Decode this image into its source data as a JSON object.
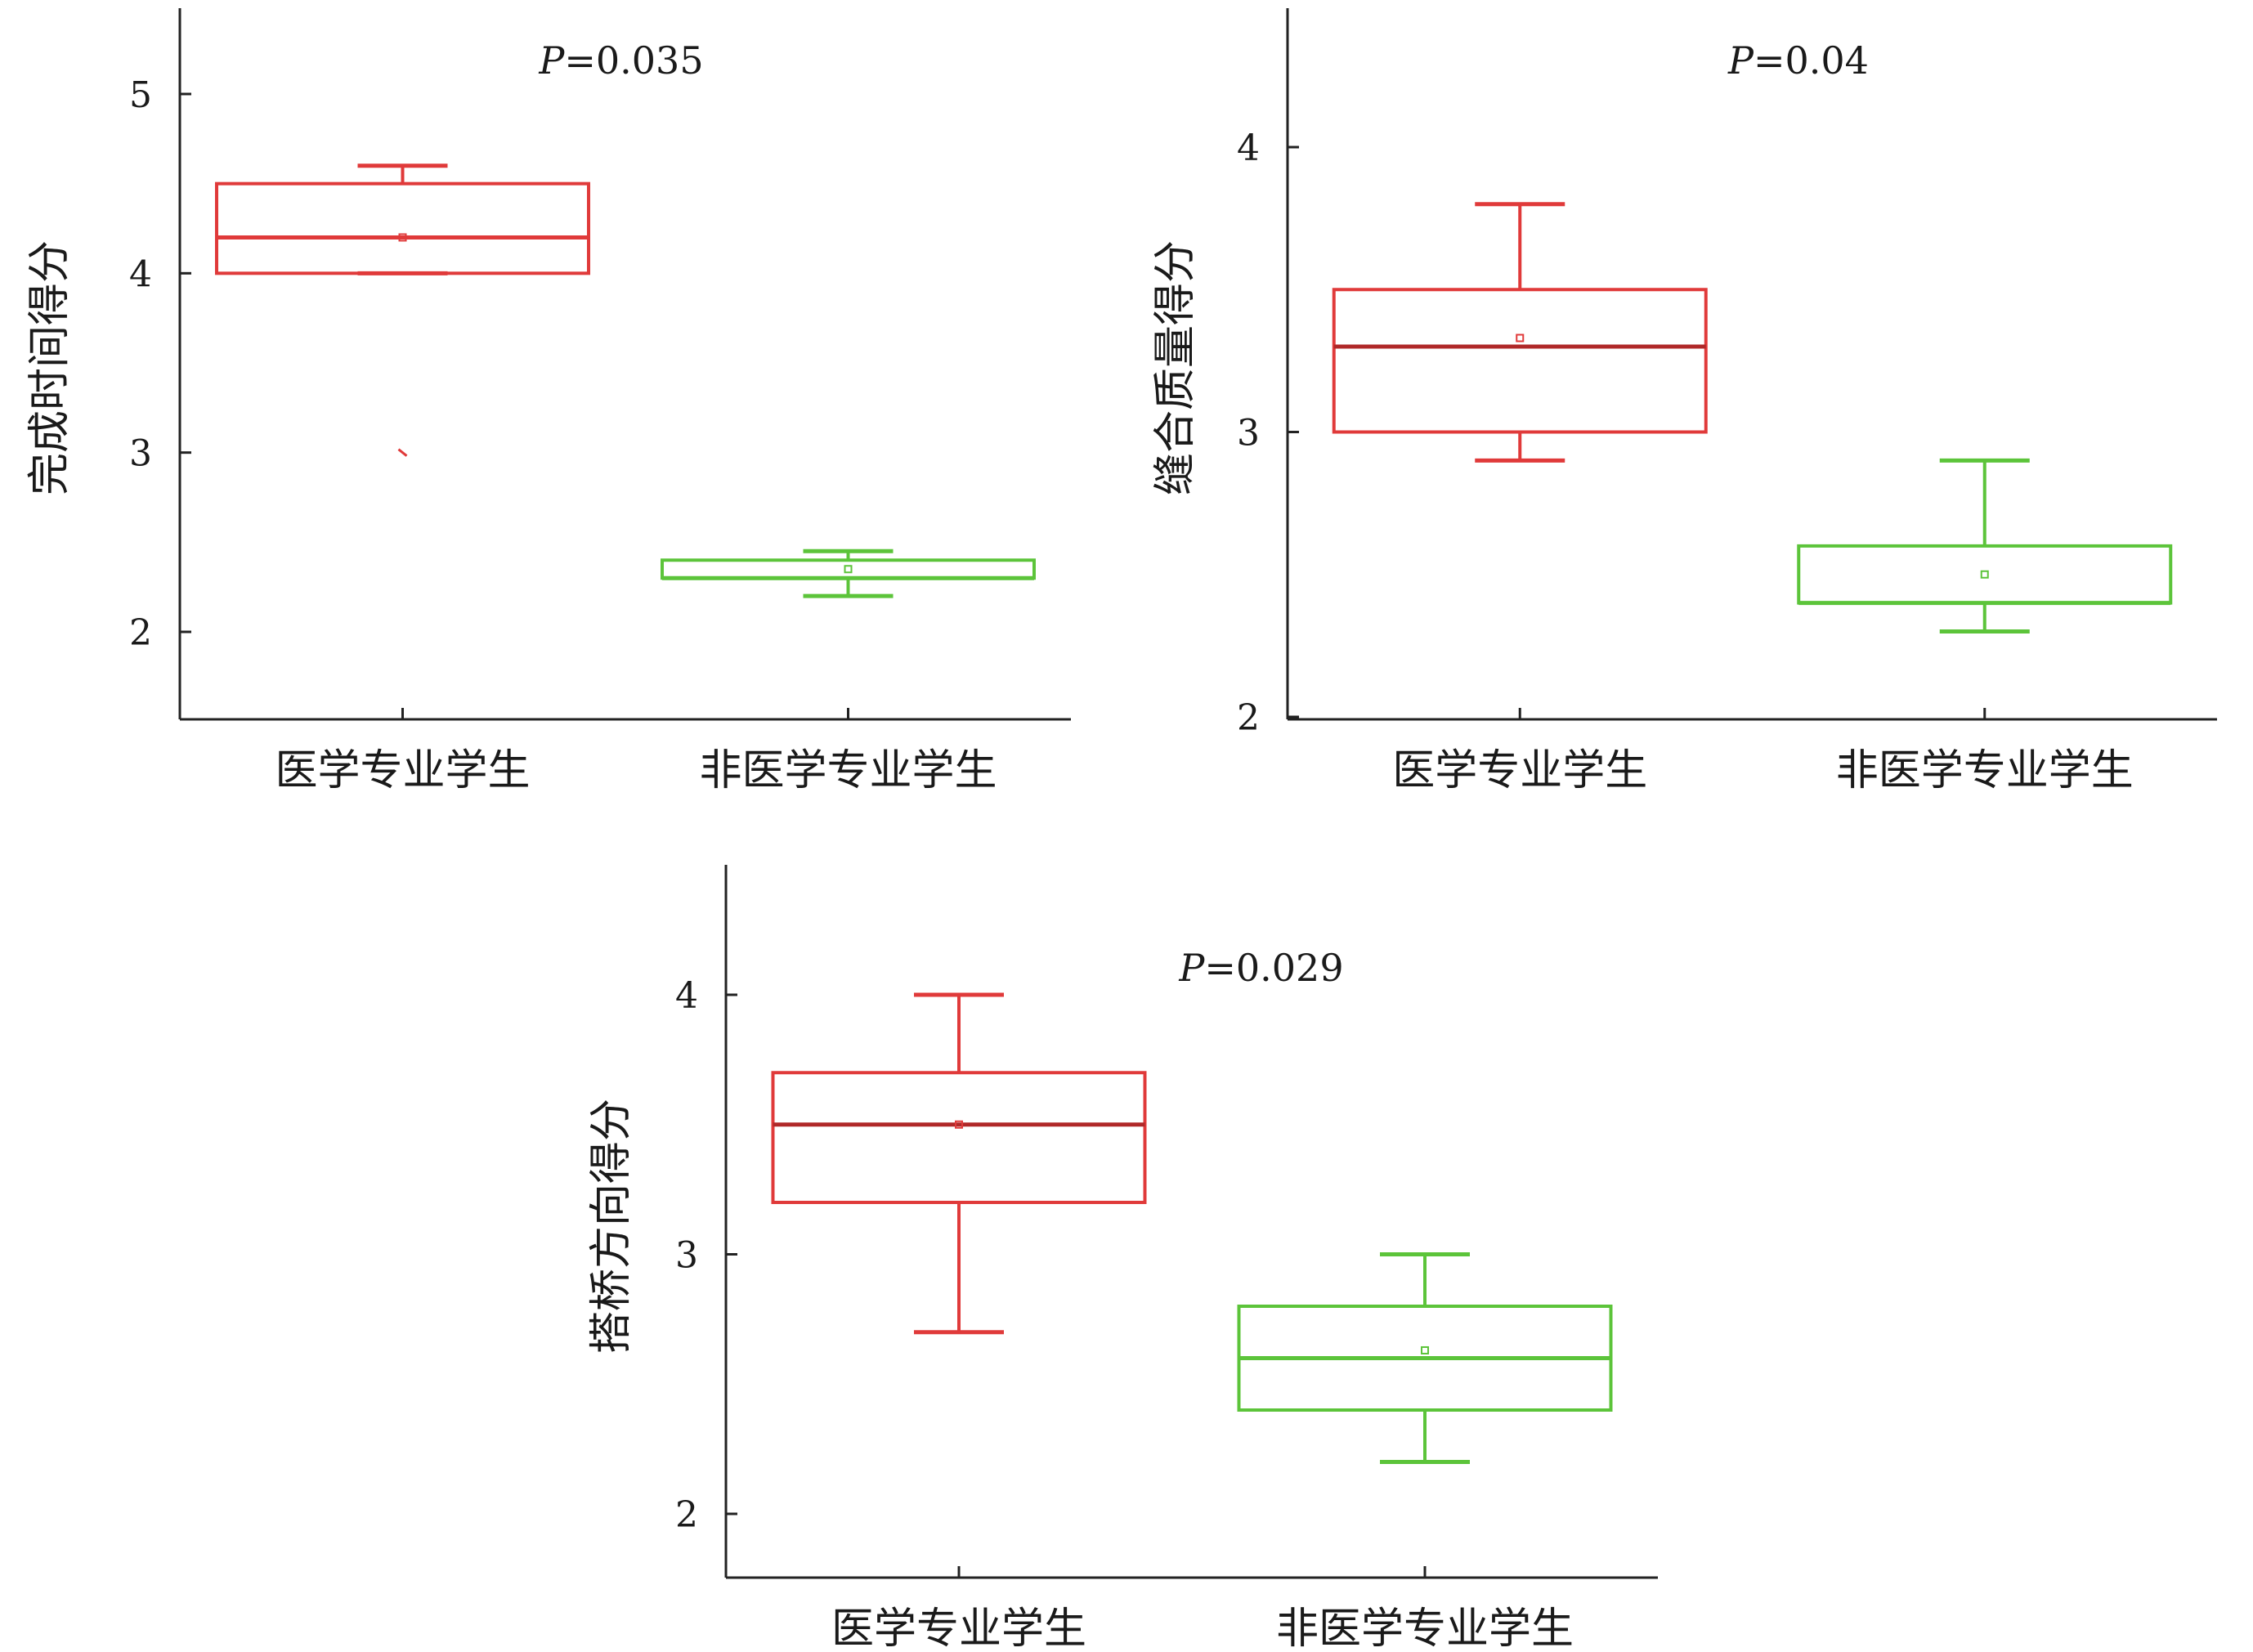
{
  "chart_data": [
    {
      "type": "box",
      "ylabel": "完成时间得分",
      "annotation": {
        "prefix": "P",
        "value": "=0.035"
      },
      "ylim": [
        1.5,
        5.5
      ],
      "yticks": [
        2,
        3,
        4,
        5
      ],
      "categories": [
        "医学专业学生",
        "非医学专业学生"
      ],
      "boxes": [
        {
          "category": "医学专业学生",
          "color": "#e03a3a",
          "whisker_low": 4.0,
          "q1": 4.0,
          "median": 4.2,
          "q3": 4.5,
          "whisker_high": 4.6,
          "mean": 4.2,
          "outliers": [
            3.0
          ]
        },
        {
          "category": "非医学专业学生",
          "color": "#5cc43a",
          "whisker_low": 2.2,
          "q1": 2.3,
          "median": 2.3,
          "q3": 2.4,
          "whisker_high": 2.45,
          "mean": 2.35,
          "outliers": []
        }
      ]
    },
    {
      "type": "box",
      "ylabel": "缝合质量得分",
      "annotation": {
        "prefix": "P",
        "value": "=0.04"
      },
      "ylim": [
        2.0,
        4.5
      ],
      "yticks": [
        2,
        3,
        4
      ],
      "categories": [
        "医学专业学生",
        "非医学专业学生"
      ],
      "boxes": [
        {
          "category": "医学专业学生",
          "color": "#e03a3a",
          "whisker_low": 2.9,
          "q1": 3.0,
          "median": 3.3,
          "q3": 3.5,
          "whisker_high": 3.8,
          "mean": 3.33,
          "outliers": []
        },
        {
          "category": "非医学专业学生",
          "color": "#5cc43a",
          "whisker_low": 2.3,
          "q1": 2.4,
          "median": 2.4,
          "q3": 2.6,
          "whisker_high": 2.9,
          "mean": 2.5,
          "outliers": []
        }
      ]
    },
    {
      "type": "box",
      "ylabel": "搭桥方向得分",
      "annotation": {
        "prefix": "P",
        "value": "=0.029"
      },
      "ylim": [
        1.75,
        4.5
      ],
      "yticks": [
        2,
        3,
        4
      ],
      "categories": [
        "医学专业学生",
        "非医学专业学生"
      ],
      "boxes": [
        {
          "category": "医学专业学生",
          "color": "#e03a3a",
          "whisker_low": 2.7,
          "q1": 3.2,
          "median": 3.5,
          "q3": 3.7,
          "whisker_high": 4.0,
          "mean": 3.5,
          "outliers": []
        },
        {
          "category": "非医学专业学生",
          "color": "#5cc43a",
          "whisker_low": 2.2,
          "q1": 2.4,
          "median": 2.6,
          "q3": 2.8,
          "whisker_high": 3.0,
          "mean": 2.63,
          "outliers": []
        }
      ]
    }
  ]
}
